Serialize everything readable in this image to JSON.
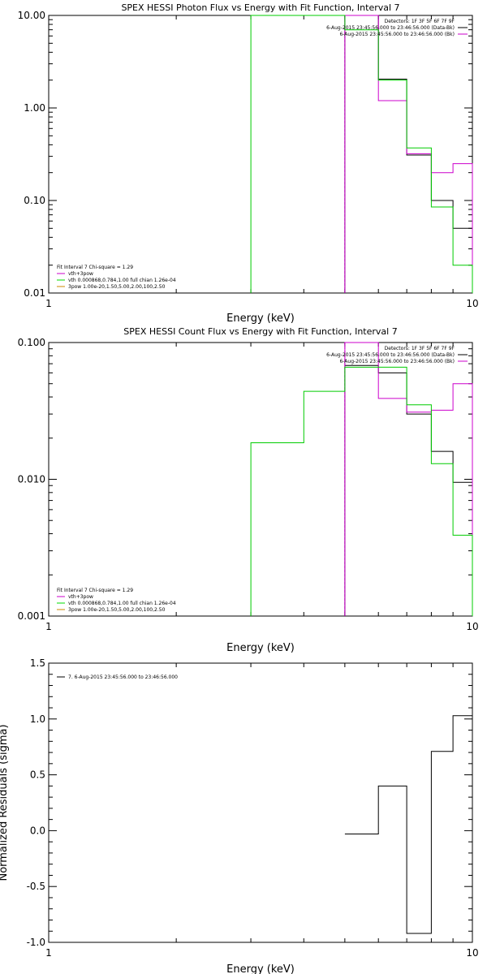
{
  "colors": {
    "background": "#ffffff",
    "axes": "#000000",
    "data": "#000000",
    "model": "#00cc00",
    "observed_bk": "#cc00cc",
    "vth": "#00dd00",
    "pow": "#cc8800"
  },
  "chart_data": [
    {
      "type": "line",
      "step": true,
      "title": "SPEX HESSI Photon Flux vs Energy with Fit Function, Interval 7",
      "xlabel": "Energy (keV)",
      "ylabel": "",
      "xscale": "log",
      "yscale": "log",
      "xlim": [
        1,
        10
      ],
      "ylim": [
        0.01,
        10.0
      ],
      "xticks": [
        {
          "v": 1,
          "label": "1"
        },
        {
          "v": 10,
          "label": "10"
        }
      ],
      "yticks": [
        {
          "v": 0.01,
          "label": "0.01"
        },
        {
          "v": 0.1,
          "label": "0.10"
        },
        {
          "v": 1,
          "label": "1.00"
        },
        {
          "v": 10,
          "label": "10.00"
        }
      ],
      "legend_position": "top-right",
      "legend": [
        {
          "label": "Detectors: 1F 3F 5F 6F 7F 9F",
          "color": ""
        },
        {
          "label": "6-Aug-2015 23:45:56.000 to 23:46:56.000 (Data-Bk)",
          "color": "#000000"
        },
        {
          "label": "6-Aug-2015 23:45:56.000 to 23:46:56.000 (Bk)",
          "color": "#cc00cc"
        }
      ],
      "fit_legend_position": "bottom-left",
      "fit_legend": [
        {
          "label": "Fit Interval 7   Chi-square = 1.29",
          "color": ""
        },
        {
          "label": "vth+3pow",
          "color": "#cc00cc"
        },
        {
          "label": "vth 0.000868,0.784,1.00  full chian 1.26e-04",
          "color": "#00dd00"
        },
        {
          "label": "3pow 1.00e-20,1.50,5.00,2.00,100,2.50",
          "color": "#cc8800"
        }
      ],
      "series": [
        {
          "name": "Data-Bk",
          "color": "#000000",
          "x": [
            5,
            6,
            7,
            8,
            9,
            10
          ],
          "y": [
            10.0,
            2.05,
            0.31,
            0.1,
            0.05,
            0.01
          ]
        },
        {
          "name": "Bk",
          "color": "#cc00cc",
          "x": [
            5,
            6,
            7,
            8,
            9,
            10
          ],
          "y": [
            10.0,
            1.2,
            0.32,
            0.2,
            0.25,
            0.01
          ]
        },
        {
          "name": "vth+3pow",
          "color": "#00cc00",
          "x": [
            3,
            5,
            6,
            7,
            8,
            9,
            10
          ],
          "y": [
            10.0,
            7.0,
            2.0,
            0.37,
            0.085,
            0.02,
            0.01
          ]
        }
      ],
      "vlines": [
        {
          "x": 5,
          "color": "#cc00cc"
        }
      ]
    },
    {
      "type": "line",
      "step": true,
      "title": "SPEX HESSI Count Flux vs Energy with Fit Function, Interval 7",
      "xlabel": "Energy (keV)",
      "ylabel": "",
      "xscale": "log",
      "yscale": "log",
      "xlim": [
        1,
        10
      ],
      "ylim": [
        0.001,
        0.1
      ],
      "xticks": [
        {
          "v": 1,
          "label": "1"
        },
        {
          "v": 10,
          "label": "10"
        }
      ],
      "yticks": [
        {
          "v": 0.001,
          "label": "0.001"
        },
        {
          "v": 0.01,
          "label": "0.010"
        },
        {
          "v": 0.1,
          "label": "0.100"
        }
      ],
      "legend_position": "top-right",
      "legend": [
        {
          "label": "Detectors: 1F 3F 5F 6F 7F 9F",
          "color": ""
        },
        {
          "label": "6-Aug-2015 23:45:56.000 to 23:46:56.000 (Data-Bk)",
          "color": "#000000"
        },
        {
          "label": "6-Aug-2015 23:45:56.000 to 23:46:56.000 (Bk)",
          "color": "#cc00cc"
        }
      ],
      "fit_legend_position": "bottom-left",
      "fit_legend": [
        {
          "label": "Fit Interval 7   Chi-square = 1.29",
          "color": ""
        },
        {
          "label": "vth+3pow",
          "color": "#cc00cc"
        },
        {
          "label": "vth 0.000868,0.784,1.00  full chian 1.26e-04",
          "color": "#00dd00"
        },
        {
          "label": "3pow 1.00e-20,1.50,5.00,2.00,100,2.50",
          "color": "#cc8800"
        }
      ],
      "series": [
        {
          "name": "Data-Bk",
          "color": "#000000",
          "x": [
            5,
            6,
            7,
            8,
            9,
            10
          ],
          "y": [
            0.068,
            0.06,
            0.03,
            0.016,
            0.0095,
            0.001
          ]
        },
        {
          "name": "Bk",
          "color": "#cc00cc",
          "x": [
            5,
            6,
            7,
            8,
            9,
            10
          ],
          "y": [
            0.1,
            0.039,
            0.031,
            0.032,
            0.05,
            0.001
          ]
        },
        {
          "name": "vth+3pow",
          "color": "#00cc00",
          "x": [
            3,
            4,
            5,
            6,
            7,
            8,
            9,
            10
          ],
          "y": [
            0.0185,
            0.044,
            0.066,
            0.066,
            0.035,
            0.013,
            0.0039,
            0.001
          ]
        }
      ],
      "vlines": [
        {
          "x": 5,
          "color": "#cc00cc"
        }
      ]
    },
    {
      "type": "line",
      "step": true,
      "title": "",
      "xlabel": "Energy (keV)",
      "ylabel": "Normalized Residuals (sigma)",
      "xscale": "log",
      "yscale": "linear",
      "xlim": [
        1,
        10
      ],
      "ylim": [
        -1.0,
        1.5
      ],
      "xticks": [
        {
          "v": 1,
          "label": "1"
        },
        {
          "v": 10,
          "label": "10"
        }
      ],
      "yticks": [
        {
          "v": -1.0,
          "label": "-1.0"
        },
        {
          "v": -0.5,
          "label": "-0.5"
        },
        {
          "v": 0.0,
          "label": "0.0"
        },
        {
          "v": 0.5,
          "label": "0.5"
        },
        {
          "v": 1.0,
          "label": "1.0"
        },
        {
          "v": 1.5,
          "label": "1.5"
        }
      ],
      "legend_position": "top-left",
      "legend": [
        {
          "label": "7.  6-Aug-2015 23:45:56.000 to 23:46:56.000",
          "color": "#000000"
        }
      ],
      "fit_legend": [],
      "series": [
        {
          "name": "Residuals",
          "color": "#000000",
          "x": [
            5,
            6,
            7,
            8,
            9,
            10
          ],
          "y": [
            -0.03,
            0.4,
            -0.92,
            0.71,
            1.03,
            1.03
          ]
        }
      ],
      "vlines": []
    }
  ]
}
